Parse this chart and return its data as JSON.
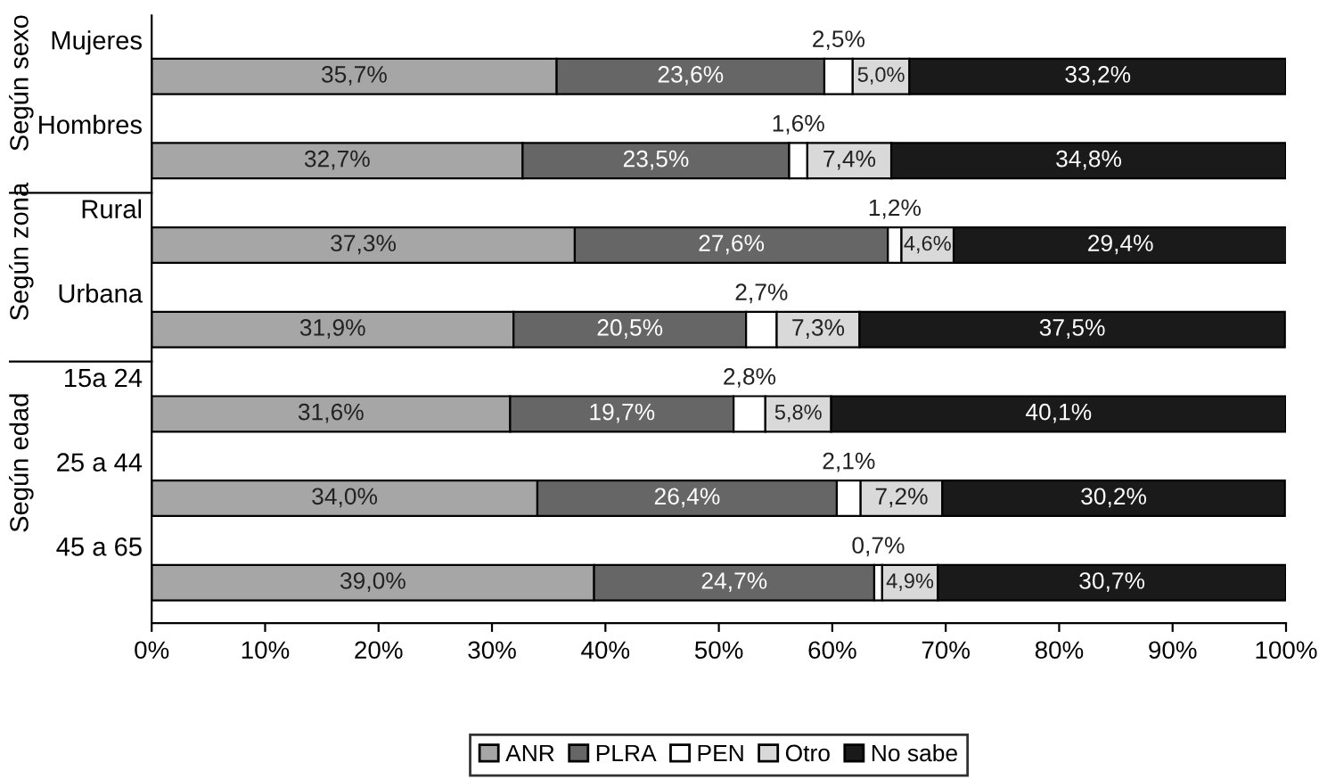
{
  "chart_data": {
    "type": "bar",
    "orientation": "horizontal",
    "stacked": true,
    "categories": [
      "Mujeres",
      "Hombres",
      "Rural",
      "Urbana",
      "15a 24",
      "25 a 44",
      "45 a 65"
    ],
    "series": [
      {
        "name": "ANR",
        "color": "#a6a6a6",
        "values": [
          35.7,
          32.7,
          37.3,
          31.9,
          31.6,
          34.0,
          39.0
        ],
        "value_labels": [
          "35,7%",
          "32,7%",
          "37,3%",
          "31,9%",
          "31,6%",
          "34,0%",
          "39,0%"
        ]
      },
      {
        "name": "PLRA",
        "color": "#666666",
        "values": [
          23.6,
          23.5,
          27.6,
          20.5,
          19.7,
          26.4,
          24.7
        ],
        "value_labels": [
          "23,6%",
          "23,5%",
          "27,6%",
          "20,5%",
          "19,7%",
          "26,4%",
          "24,7%"
        ]
      },
      {
        "name": "PEN",
        "color": "#ffffff",
        "values": [
          2.5,
          1.6,
          1.2,
          2.7,
          2.8,
          2.1,
          0.7
        ],
        "value_labels": [
          "2,5%",
          "1,6%",
          "1,2%",
          "2,7%",
          "2,8%",
          "2,1%",
          "0,7%"
        ]
      },
      {
        "name": "Otro",
        "color": "#d9d9d9",
        "values": [
          5.0,
          7.4,
          4.6,
          7.3,
          5.8,
          7.2,
          4.9
        ],
        "value_labels": [
          "5,0%",
          "7,4%",
          "4,6%",
          "7,3%",
          "5,8%",
          "7,2%",
          "4,9%"
        ]
      },
      {
        "name": "No sabe",
        "color": "#1a1a1a",
        "values": [
          33.2,
          34.8,
          29.4,
          37.5,
          40.1,
          30.2,
          30.7
        ],
        "value_labels": [
          "33,2%",
          "34,8%",
          "29,4%",
          "37,5%",
          "40,1%",
          "30,2%",
          "30,7%"
        ]
      }
    ],
    "xlim": [
      0,
      100
    ],
    "xticks": [
      {
        "value": 0,
        "label": "0%"
      },
      {
        "value": 10,
        "label": "10%"
      },
      {
        "value": 20,
        "label": "20%"
      },
      {
        "value": 30,
        "label": "30%"
      },
      {
        "value": 40,
        "label": "40%"
      },
      {
        "value": 50,
        "label": "50%"
      },
      {
        "value": 60,
        "label": "60%"
      },
      {
        "value": 70,
        "label": "70%"
      },
      {
        "value": 80,
        "label": "80%"
      },
      {
        "value": 90,
        "label": "90%"
      },
      {
        "value": 100,
        "label": "100%"
      }
    ],
    "annotations": [
      "Según sexo",
      "Según zona",
      "Según edad"
    ],
    "legend": "bottom",
    "grid": false
  }
}
